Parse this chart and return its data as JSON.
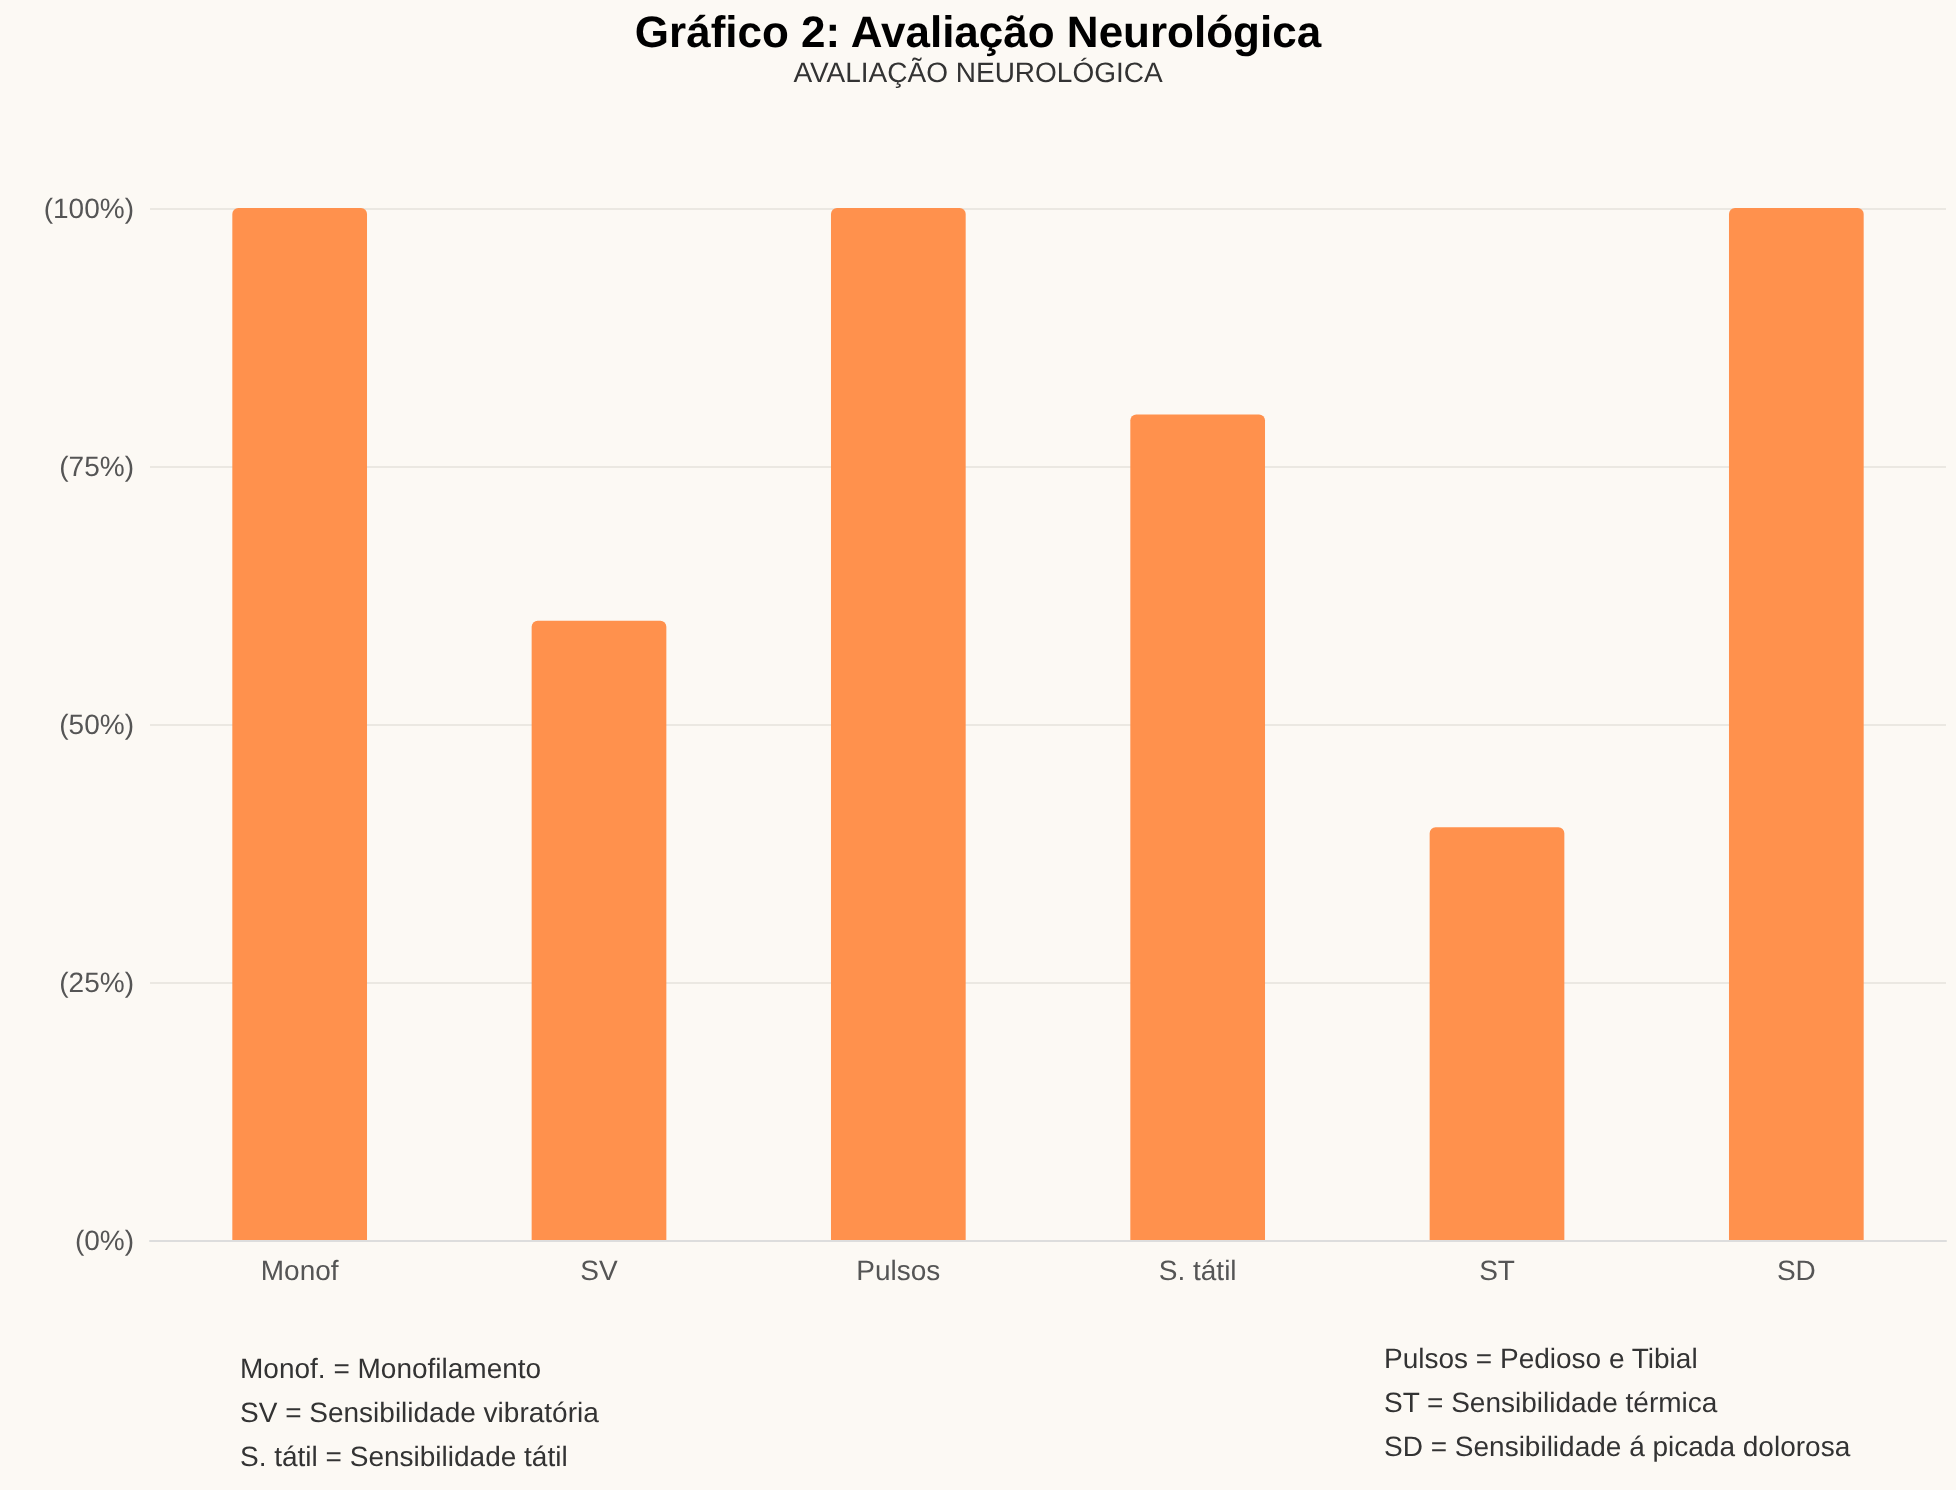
{
  "chart_data": {
    "type": "bar",
    "title": "Gráfico 2: Avaliação Neurológica",
    "subtitle": "AVALIAÇÃO NEUROLÓGICA",
    "categories": [
      "Monof",
      "SV",
      "Pulsos",
      "S. tátil",
      "ST",
      "SD"
    ],
    "values": [
      100,
      60,
      100,
      80,
      40,
      100
    ],
    "color": "#ff914d",
    "ylim": [
      0,
      100
    ],
    "yticks": [
      {
        "value": 0,
        "label": "(0%)"
      },
      {
        "value": 25,
        "label": "(25%)"
      },
      {
        "value": 50,
        "label": "(50%)"
      },
      {
        "value": 75,
        "label": "(75%)"
      },
      {
        "value": 100,
        "label": "(100%)"
      }
    ],
    "grid": "y",
    "annotations": [
      "Monof. = Monofilamento",
      "SV = Sensibilidade vibratória",
      "S. tátil = Sensibilidade tátil",
      "Pulsos = Pedioso e Tibial",
      "ST = Sensibilidade térmica",
      "SD = Sensibilidade á picada dolorosa"
    ]
  }
}
